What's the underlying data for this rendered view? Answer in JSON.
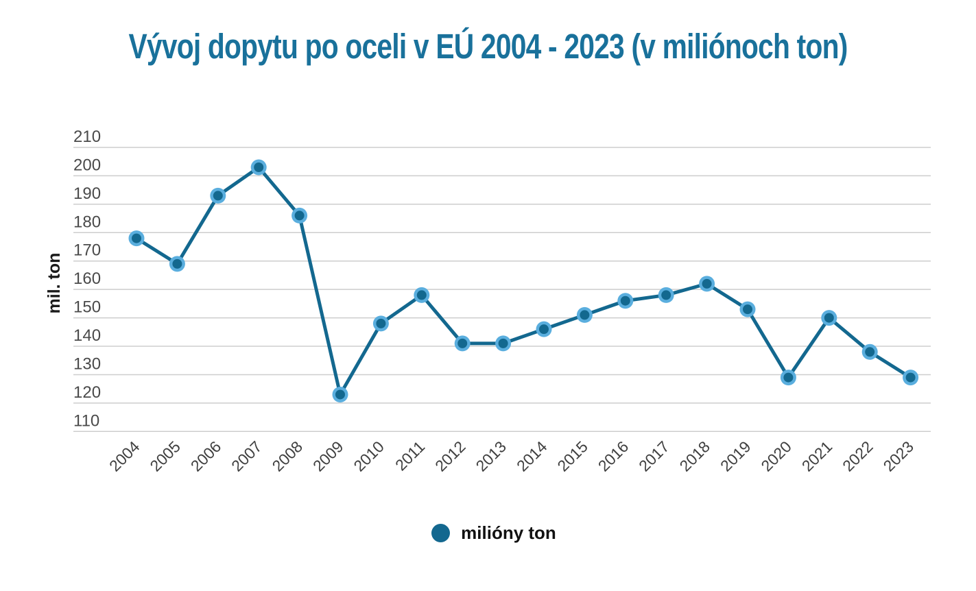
{
  "title": "Vývoj dopytu po oceli v EÚ 2004 - 2023 (v miliónoch ton)",
  "y_axis_title": "mil. ton",
  "legend": {
    "label": "milióny ton"
  },
  "colors": {
    "title": "#19719b",
    "line": "#13688f",
    "marker_inner": "#13688f",
    "marker_ring": "#5aaede",
    "gridline": "#cdcdcd",
    "y_tick_label": "#4a4a4a",
    "x_tick_label": "#3f3f3f"
  },
  "chart_data": {
    "type": "line",
    "title": "Vývoj dopytu po oceli v EÚ 2004 - 2023 (v miliónoch ton)",
    "xlabel": "",
    "ylabel": "mil. ton",
    "x": [
      "2004",
      "2005",
      "2006",
      "2007",
      "2008",
      "2009",
      "2010",
      "2011",
      "2012",
      "2013",
      "2014",
      "2015",
      "2016",
      "2017",
      "2018",
      "2019",
      "2020",
      "2021",
      "2022",
      "2023"
    ],
    "series": [
      {
        "name": "milióny ton",
        "values": [
          178,
          169,
          193,
          203,
          186,
          123,
          148,
          158,
          141,
          141,
          146,
          151,
          156,
          158,
          162,
          153,
          129,
          150,
          138,
          129
        ]
      }
    ],
    "ylim": [
      110,
      210
    ],
    "y_ticks": [
      210,
      200,
      190,
      180,
      170,
      160,
      150,
      140,
      130,
      120,
      110
    ],
    "grid": "horizontal",
    "legend_position": "bottom",
    "x_label_rotation": -45
  }
}
